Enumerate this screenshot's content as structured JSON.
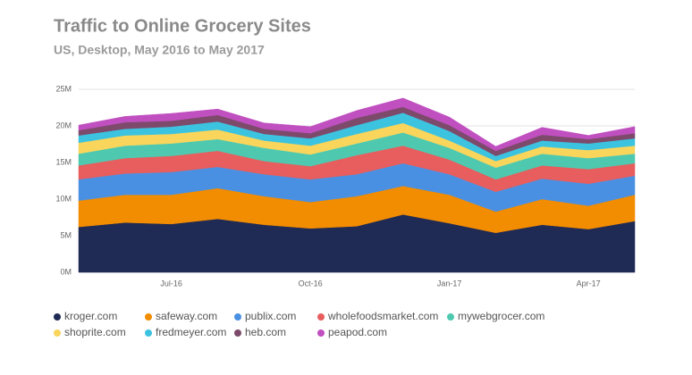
{
  "chart_data": {
    "type": "stacked-area",
    "title": "Traffic to Online Grocery Sites",
    "subtitle": "US, Desktop, May 2016 to May 2017",
    "categories": [
      null,
      null,
      "Jul-16",
      null,
      null,
      "Oct-16",
      null,
      null,
      "Jan-17",
      null,
      null,
      "Apr-17",
      null
    ],
    "ylim": [
      0,
      25
    ],
    "yticks": [
      {
        "value": 0,
        "label": "0M"
      },
      {
        "value": 5,
        "label": "5M"
      },
      {
        "value": 10,
        "label": "10M"
      },
      {
        "value": 15,
        "label": "15M"
      },
      {
        "value": 20,
        "label": "20M"
      },
      {
        "value": 25,
        "label": "25M"
      }
    ],
    "grid": true,
    "series": [
      {
        "name": "kroger.com",
        "color": "#1f2a55",
        "values": [
          6.2,
          6.8,
          6.6,
          7.3,
          6.5,
          6.0,
          6.3,
          7.9,
          6.7,
          5.4,
          6.5,
          5.9,
          7.0
        ]
      },
      {
        "name": "safeway.com",
        "color": "#f28c00",
        "values": [
          3.6,
          3.8,
          4.0,
          4.2,
          3.9,
          3.6,
          4.1,
          3.9,
          3.9,
          2.9,
          3.5,
          3.2,
          3.6
        ]
      },
      {
        "name": "publix.com",
        "color": "#4a90e2",
        "values": [
          2.9,
          2.9,
          3.1,
          2.9,
          3.0,
          3.1,
          3.0,
          3.1,
          2.8,
          2.7,
          2.8,
          3.0,
          2.6
        ]
      },
      {
        "name": "wholefoodsmarket.com",
        "color": "#e85d5d",
        "values": [
          1.9,
          2.1,
          2.2,
          2.2,
          1.8,
          1.8,
          2.6,
          2.4,
          2.0,
          1.7,
          1.8,
          2.0,
          1.7
        ]
      },
      {
        "name": "mywebgrocer.com",
        "color": "#4ec9b0",
        "values": [
          1.6,
          1.7,
          1.7,
          1.6,
          1.8,
          1.6,
          1.6,
          1.8,
          1.6,
          1.6,
          1.6,
          1.5,
          1.3
        ]
      },
      {
        "name": "shoprite.com",
        "color": "#f9d55b",
        "values": [
          1.5,
          1.4,
          1.3,
          1.3,
          1.0,
          1.2,
          1.3,
          1.3,
          1.0,
          0.9,
          1.0,
          1.1,
          1.1
        ]
      },
      {
        "name": "fredmeyer.com",
        "color": "#3cc3e0",
        "values": [
          1.0,
          0.9,
          1.0,
          1.1,
          0.9,
          1.0,
          1.2,
          1.4,
          1.3,
          0.7,
          0.8,
          0.9,
          1.0
        ]
      },
      {
        "name": "heb.com",
        "color": "#7d4a6b",
        "values": [
          0.7,
          0.9,
          0.8,
          0.9,
          0.7,
          0.7,
          1.0,
          0.8,
          0.8,
          0.7,
          0.8,
          0.6,
          0.7
        ]
      },
      {
        "name": "peapod.com",
        "color": "#c04fc0",
        "values": [
          0.7,
          0.8,
          1.0,
          0.8,
          0.8,
          0.9,
          1.0,
          1.2,
          1.1,
          0.6,
          1.0,
          0.5,
          0.9
        ]
      }
    ]
  }
}
